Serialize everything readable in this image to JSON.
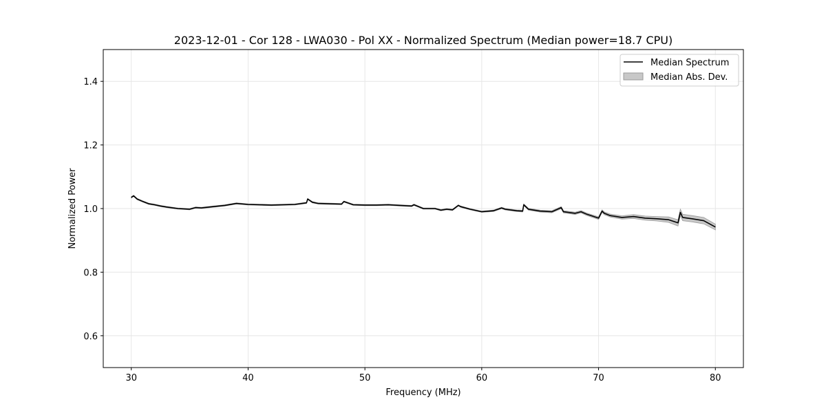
{
  "chart_data": {
    "type": "line",
    "title": "2023-12-01 - Cor 128 - LWA030 - Pol XX - Normalized Spectrum (Median power=18.7 CPU)",
    "xlabel": "Frequency (MHz)",
    "ylabel": "Normalized Power",
    "xlim": [
      27.6,
      82.4
    ],
    "ylim": [
      0.5,
      1.5
    ],
    "xticks": [
      30,
      40,
      50,
      60,
      70,
      80
    ],
    "xtick_labels": [
      "30",
      "40",
      "50",
      "60",
      "70",
      "80"
    ],
    "yticks": [
      0.6,
      0.8,
      1.0,
      1.2,
      1.4
    ],
    "ytick_labels": [
      "0.6",
      "0.8",
      "1.0",
      "1.2",
      "1.4"
    ],
    "grid": true,
    "legend": {
      "placement": "top-right",
      "entries": [
        "Median Spectrum",
        "Median Abs. Dev."
      ]
    },
    "series": [
      {
        "name": "Median Spectrum",
        "kind": "line",
        "color": "#000000",
        "x": [
          30,
          30.2,
          30.5,
          31,
          31.5,
          32,
          32.5,
          33,
          34,
          35,
          35.5,
          36,
          37,
          38,
          39,
          40,
          41,
          42,
          43,
          44,
          45,
          45.1,
          45.5,
          46,
          47,
          48,
          48.2,
          49,
          50,
          51,
          52,
          53,
          54,
          54.2,
          55,
          56,
          56.5,
          57,
          57.5,
          58,
          58.2,
          59,
          60,
          61,
          61.7,
          62,
          63,
          63.5,
          63.6,
          64,
          65,
          66,
          66.8,
          67,
          68,
          68.5,
          69,
          70,
          70.3,
          70.5,
          71,
          72,
          73,
          74,
          75,
          76,
          76.8,
          77,
          77.2,
          78,
          79,
          80
        ],
        "y": [
          1.035,
          1.04,
          1.03,
          1.022,
          1.015,
          1.012,
          1.008,
          1.005,
          1.0,
          0.998,
          1.003,
          1.002,
          1.006,
          1.01,
          1.016,
          1.013,
          1.012,
          1.011,
          1.012,
          1.013,
          1.018,
          1.03,
          1.02,
          1.016,
          1.015,
          1.014,
          1.022,
          1.012,
          1.011,
          1.011,
          1.012,
          1.01,
          1.008,
          1.012,
          1.0,
          1.0,
          0.995,
          0.998,
          0.996,
          1.01,
          1.006,
          0.998,
          0.99,
          0.993,
          1.002,
          0.998,
          0.993,
          0.992,
          1.012,
          0.998,
          0.992,
          0.99,
          1.003,
          0.99,
          0.985,
          0.99,
          0.982,
          0.97,
          0.992,
          0.985,
          0.978,
          0.972,
          0.975,
          0.97,
          0.968,
          0.965,
          0.955,
          0.988,
          0.972,
          0.968,
          0.962,
          0.942
        ]
      },
      {
        "name": "Median Abs. Dev.",
        "kind": "band",
        "color": "#c8c8c8",
        "x": [
          30,
          40,
          50,
          55,
          60,
          65,
          70,
          73,
          75,
          77,
          79,
          80
        ],
        "half_width": [
          0.002,
          0.002,
          0.002,
          0.002,
          0.002,
          0.003,
          0.004,
          0.006,
          0.007,
          0.01,
          0.01,
          0.009
        ]
      }
    ]
  }
}
